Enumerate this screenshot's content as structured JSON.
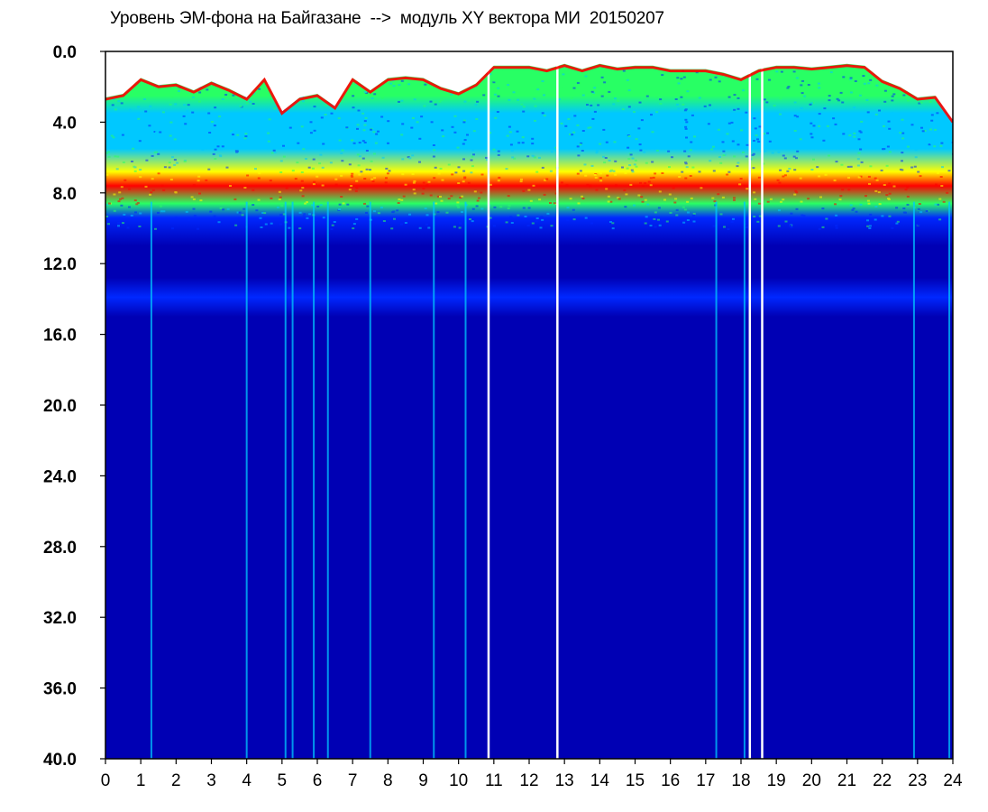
{
  "chart_data": {
    "type": "heatmap",
    "title": "Уровень ЭМ-фона на Байгазане  -->  модуль XY вектора МИ  20150207",
    "xlabel": "",
    "ylabel": "",
    "x_tick_labels": [
      "0",
      "1",
      "2",
      "3",
      "4",
      "5",
      "6",
      "7",
      "8",
      "9",
      "10",
      "11",
      "12",
      "13",
      "14",
      "15",
      "16",
      "17",
      "18",
      "19",
      "20",
      "21",
      "22",
      "23",
      "24"
    ],
    "y_tick_labels": [
      "0.0",
      "4.0",
      "8.0",
      "12.0",
      "16.0",
      "20.0",
      "24.0",
      "28.0",
      "32.0",
      "36.0",
      "40.0"
    ],
    "xlim": [
      0,
      24
    ],
    "ylim": [
      0,
      40
    ],
    "y_axis_inverted": true,
    "grid": false,
    "colormap": [
      "#0000b4",
      "#0028ff",
      "#00c8ff",
      "#28ff64",
      "#ffff00",
      "#ff0000"
    ],
    "background_color": "#0c14c8",
    "hot_band": {
      "y_center": 7.6,
      "y_from": 6.8,
      "y_to": 8.6
    },
    "secondary_band": {
      "y_from": 12.8,
      "y_to": 15.0
    },
    "upper_envelope_by_hour": [
      [
        0,
        2.6
      ],
      [
        0.5,
        2.4
      ],
      [
        1,
        1.5
      ],
      [
        1.5,
        1.9
      ],
      [
        2,
        1.8
      ],
      [
        2.5,
        2.2
      ],
      [
        3,
        1.7
      ],
      [
        3.5,
        2.1
      ],
      [
        4,
        2.6
      ],
      [
        4.5,
        1.5
      ],
      [
        5,
        3.4
      ],
      [
        5.5,
        2.6
      ],
      [
        6,
        2.4
      ],
      [
        6.5,
        3.1
      ],
      [
        7,
        1.5
      ],
      [
        7.5,
        2.2
      ],
      [
        8,
        1.5
      ],
      [
        8.5,
        1.4
      ],
      [
        9,
        1.5
      ],
      [
        9.5,
        2.0
      ],
      [
        10,
        2.3
      ],
      [
        10.5,
        1.8
      ],
      [
        11,
        0.8
      ],
      [
        11.5,
        0.8
      ],
      [
        12,
        0.8
      ],
      [
        12.5,
        1.0
      ],
      [
        13,
        0.7
      ],
      [
        13.5,
        1.0
      ],
      [
        14,
        0.7
      ],
      [
        14.5,
        0.9
      ],
      [
        15,
        0.8
      ],
      [
        15.5,
        0.8
      ],
      [
        16,
        1.0
      ],
      [
        16.5,
        1.0
      ],
      [
        17,
        1.0
      ],
      [
        17.5,
        1.2
      ],
      [
        18,
        1.5
      ],
      [
        18.5,
        1.0
      ],
      [
        19,
        0.8
      ],
      [
        19.5,
        0.8
      ],
      [
        20,
        0.9
      ],
      [
        20.5,
        0.8
      ],
      [
        21,
        0.7
      ],
      [
        21.5,
        0.8
      ],
      [
        22,
        1.6
      ],
      [
        22.5,
        2.0
      ],
      [
        23,
        2.6
      ],
      [
        23.5,
        2.5
      ],
      [
        24,
        3.9
      ]
    ],
    "data_gaps_hours": [
      10.85,
      12.8,
      18.25,
      18.6
    ],
    "spikes_hours": [
      1.3,
      4.0,
      5.1,
      5.3,
      5.9,
      6.3,
      7.5,
      9.3,
      10.2,
      17.3,
      18.1,
      22.9,
      23.9
    ]
  }
}
